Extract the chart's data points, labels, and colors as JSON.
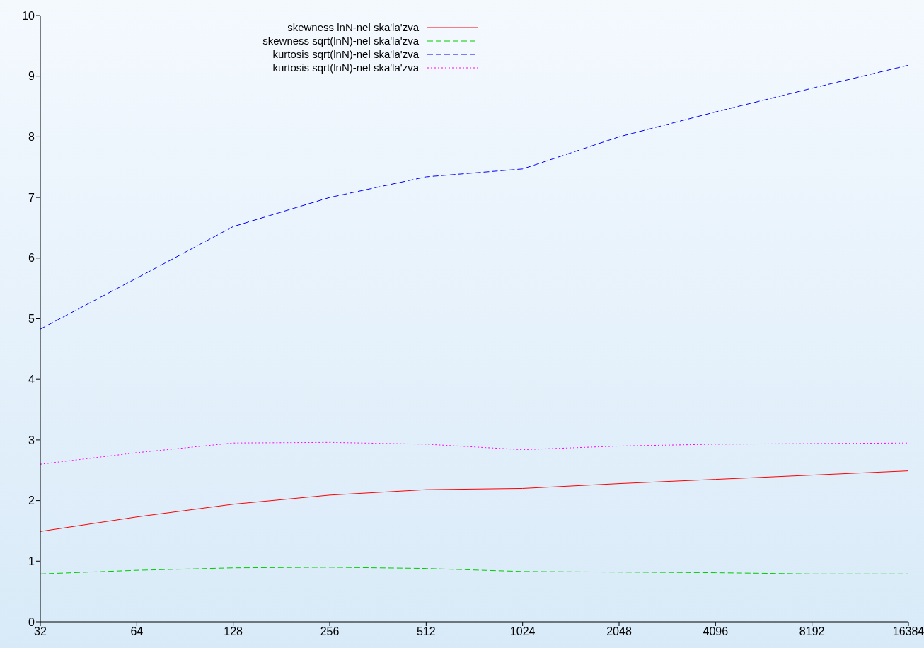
{
  "chart_data": {
    "type": "line",
    "categories": [
      "32",
      "64",
      "128",
      "256",
      "512",
      "1024",
      "2048",
      "4096",
      "8192",
      "16384"
    ],
    "series": [
      {
        "name": "skewness lnN-nel ska'la'zva",
        "color": "#ff0000",
        "line_style": "solid",
        "values": [
          1.49,
          1.73,
          1.94,
          2.09,
          2.18,
          2.2,
          2.28,
          2.35,
          2.42,
          2.49
        ]
      },
      {
        "name": "skewness sqrt(lnN)-nel ska'la'zva",
        "color": "#00cc00",
        "line_style": "dashed",
        "values": [
          0.79,
          0.85,
          0.89,
          0.9,
          0.88,
          0.83,
          0.82,
          0.81,
          0.79,
          0.79
        ]
      },
      {
        "name": "kurtosis sqrt(lnN)-nel ska'la'zva",
        "color": "#0000ff",
        "line_style": "dashed",
        "values": [
          4.83,
          5.67,
          6.52,
          7.0,
          7.34,
          7.47,
          8.0,
          8.41,
          8.8,
          9.18
        ]
      },
      {
        "name": "kurtosis sqrt(lnN)-nel ska'la'zva",
        "color": "#ff00ff",
        "line_style": "dotted",
        "values": [
          2.6,
          2.79,
          2.95,
          2.96,
          2.93,
          2.84,
          2.9,
          2.93,
          2.94,
          2.95
        ]
      }
    ],
    "ylim": [
      0,
      10
    ],
    "yticks": [
      0,
      1,
      2,
      3,
      4,
      5,
      6,
      7,
      8,
      9,
      10
    ],
    "legend": "top left",
    "marker": "none"
  }
}
